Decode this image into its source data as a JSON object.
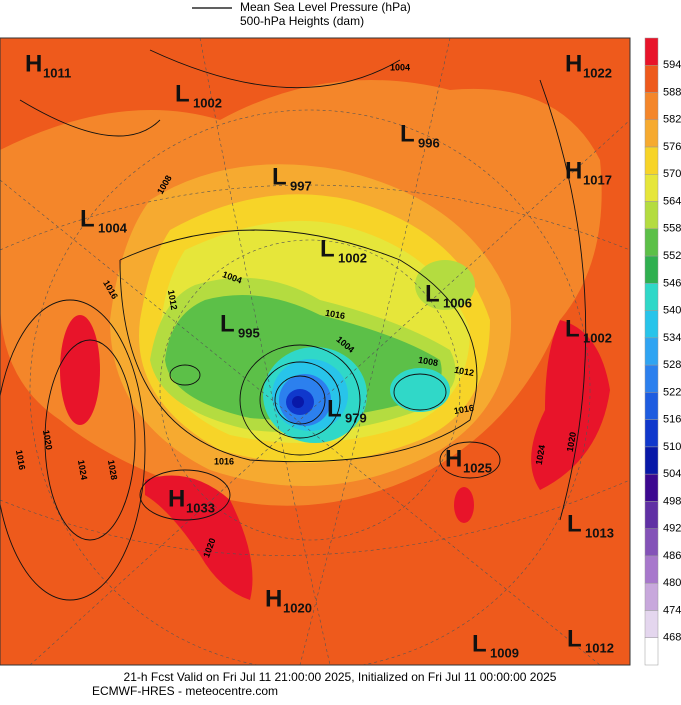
{
  "header": {
    "legend": [
      "Mean Sea Level Pressure (hPa)",
      "500-hPa Heights (dam)"
    ]
  },
  "map": {
    "centers": [
      {
        "letter": "H",
        "value": 1011
      },
      {
        "letter": "L",
        "value": 1002
      },
      {
        "letter": "H",
        "value": 1022
      },
      {
        "letter": "L",
        "value": 996
      },
      {
        "letter": "L",
        "value": 997
      },
      {
        "letter": "H",
        "value": 1017
      },
      {
        "letter": "L",
        "value": 1004
      },
      {
        "letter": "L",
        "value": 1002
      },
      {
        "letter": "L",
        "value": 1006
      },
      {
        "letter": "L",
        "value": 995
      },
      {
        "letter": "L",
        "value": 1002
      },
      {
        "letter": "L",
        "value": 979
      },
      {
        "letter": "H",
        "value": 1025
      },
      {
        "letter": "H",
        "value": 1033
      },
      {
        "letter": "L",
        "value": 1013
      },
      {
        "letter": "H",
        "value": 1020
      },
      {
        "letter": "L",
        "value": 1009
      },
      {
        "letter": "L",
        "value": 1012
      }
    ],
    "contour_labels": [
      1004,
      1008,
      1016,
      1004,
      1012,
      1016,
      1004,
      1008,
      1012,
      1016,
      1016,
      1020,
      1024,
      1028,
      1016,
      1020,
      1024,
      1020
    ]
  },
  "colorbar": {
    "ticks": [
      594,
      588,
      582,
      576,
      570,
      564,
      558,
      552,
      546,
      540,
      534,
      528,
      522,
      516,
      510,
      504,
      498,
      492,
      486,
      480,
      474,
      468
    ],
    "colors": [
      "#e8142a",
      "#ee5a1c",
      "#f4862a",
      "#f6aa30",
      "#f7d428",
      "#e6e63a",
      "#b4dc40",
      "#5cc048",
      "#30b050",
      "#30d8c8",
      "#28c4ea",
      "#30a4f2",
      "#2c80ee",
      "#1e5ce0",
      "#1038cc",
      "#0818a8",
      "#3c0890",
      "#6030a4",
      "#8452b8",
      "#a878cc",
      "#c8a8dc",
      "#e4d6ee"
    ]
  },
  "footer": {
    "lines": [
      "21-h Fcst Valid on Fri Jul 11 21:00:00 2025, Initialized on Fri Jul 11 00:00:00 2025",
      "ECMWF-HRES - meteocentre.com"
    ]
  }
}
